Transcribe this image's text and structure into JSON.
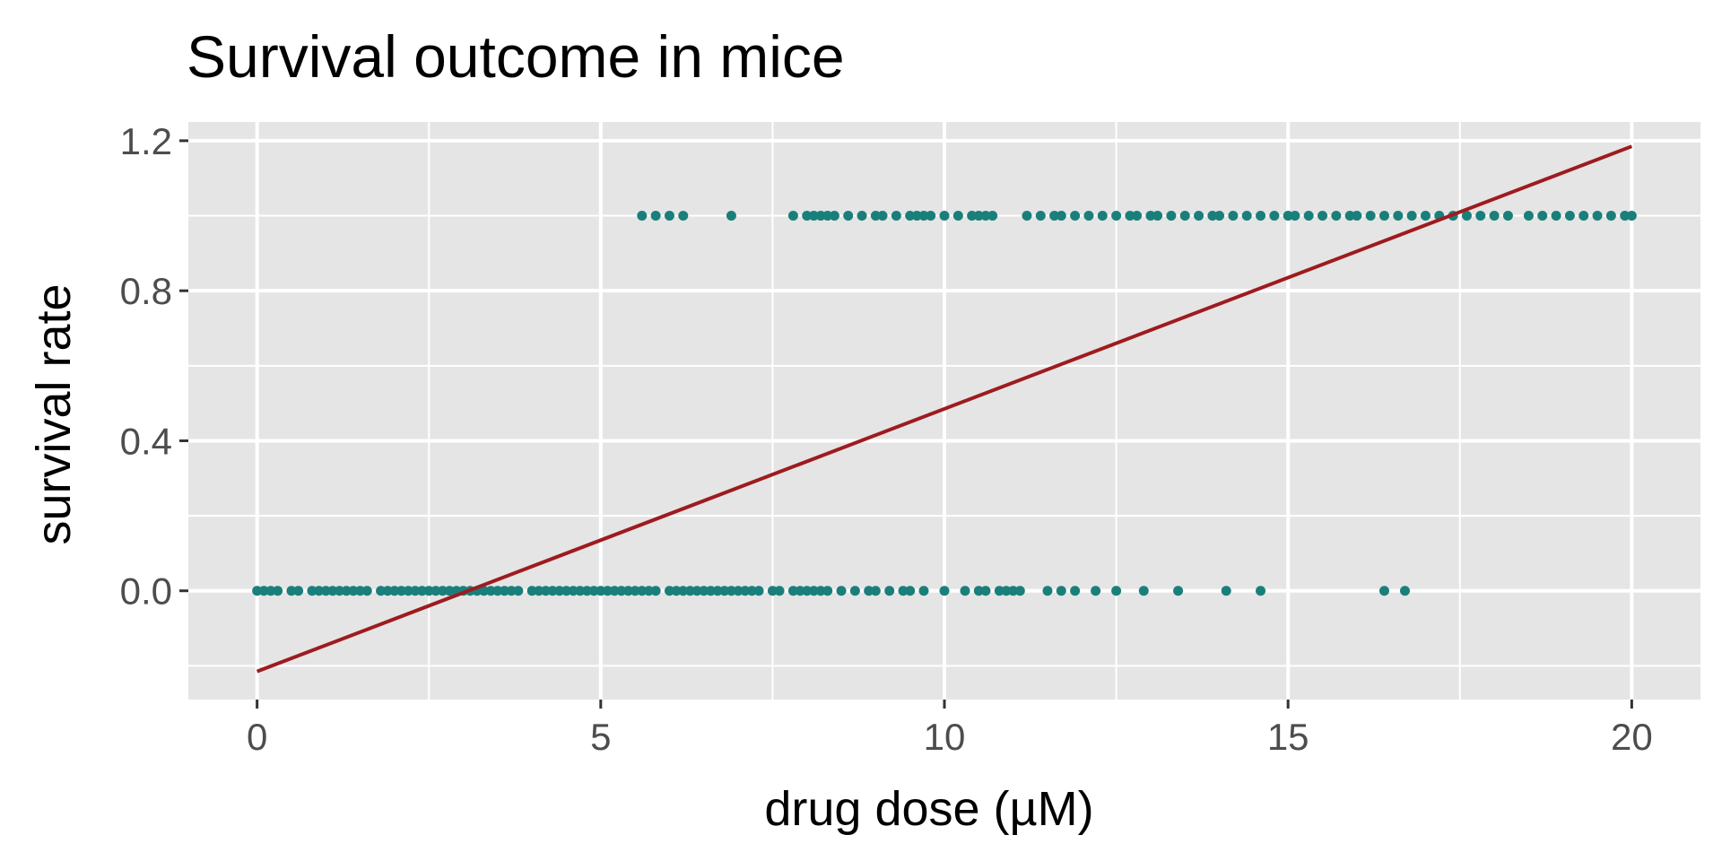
{
  "chart_data": {
    "type": "scatter",
    "title": "Survival outcome in mice",
    "xlabel": "drug dose (µM)",
    "ylabel": "survival rate",
    "xlim": [
      -1,
      21
    ],
    "ylim": [
      -0.29,
      1.25
    ],
    "xticks": [
      0,
      5,
      10,
      15,
      20
    ],
    "yticks": [
      0.0,
      0.4,
      0.8,
      1.2
    ],
    "xtick_labels": [
      "0",
      "5",
      "10",
      "15",
      "20"
    ],
    "ytick_labels": [
      "0.0",
      "0.4",
      "0.8",
      "1.2"
    ],
    "grid": true,
    "colors": {
      "panel": "#e5e5e5",
      "grid": "#ffffff",
      "points": "#1a7f7a",
      "fit_line": "#9e1b1f",
      "tick_text": "#4d4d4d"
    },
    "series": [
      {
        "kind": "points",
        "x": [
          0.0,
          0.1,
          0.2,
          0.3,
          0.5,
          0.6,
          0.8,
          0.9,
          1.0,
          1.1,
          1.2,
          1.3,
          1.4,
          1.5,
          1.6,
          1.8,
          1.9,
          2.0,
          2.1,
          2.2,
          2.3,
          2.4,
          2.5,
          2.6,
          2.7,
          2.8,
          2.9,
          3.0,
          3.1,
          3.2,
          3.3,
          3.4,
          3.5,
          3.6,
          3.7,
          3.8,
          4.0,
          4.1,
          4.2,
          4.3,
          4.4,
          4.5,
          4.6,
          4.7,
          4.8,
          4.9,
          5.0,
          5.1,
          5.2,
          5.3,
          5.4,
          5.5,
          5.6,
          5.7,
          5.8,
          6.0,
          6.1,
          6.2,
          6.3,
          6.4,
          6.5,
          6.6,
          6.7,
          6.8,
          6.9,
          7.0,
          7.1,
          7.2,
          7.3,
          7.5,
          7.6,
          7.8,
          7.9,
          8.0,
          8.1,
          8.2,
          8.3,
          8.5,
          8.7,
          8.9,
          9.0,
          9.2,
          9.4,
          9.5,
          9.7,
          10.0,
          10.3,
          10.5,
          10.6,
          10.8,
          10.9,
          11.0,
          11.1,
          11.5,
          11.7,
          11.9,
          12.2,
          12.5,
          12.9,
          13.4,
          14.1,
          14.6,
          16.4,
          16.7
        ],
        "y": [
          0,
          0,
          0,
          0,
          0,
          0,
          0,
          0,
          0,
          0,
          0,
          0,
          0,
          0,
          0,
          0,
          0,
          0,
          0,
          0,
          0,
          0,
          0,
          0,
          0,
          0,
          0,
          0,
          0,
          0,
          0,
          0,
          0,
          0,
          0,
          0,
          0,
          0,
          0,
          0,
          0,
          0,
          0,
          0,
          0,
          0,
          0,
          0,
          0,
          0,
          0,
          0,
          0,
          0,
          0,
          0,
          0,
          0,
          0,
          0,
          0,
          0,
          0,
          0,
          0,
          0,
          0,
          0,
          0,
          0,
          0,
          0,
          0,
          0,
          0,
          0,
          0,
          0,
          0,
          0,
          0,
          0,
          0,
          0,
          0,
          0,
          0,
          0,
          0,
          0,
          0,
          0,
          0,
          0,
          0,
          0,
          0,
          0,
          0,
          0,
          0,
          0,
          0,
          0
        ]
      },
      {
        "kind": "points",
        "x": [
          5.6,
          5.8,
          6.0,
          6.2,
          6.9,
          7.8,
          8.0,
          8.1,
          8.2,
          8.3,
          8.4,
          8.6,
          8.8,
          9.0,
          9.1,
          9.3,
          9.5,
          9.6,
          9.7,
          9.8,
          10.0,
          10.2,
          10.4,
          10.5,
          10.6,
          10.7,
          11.2,
          11.4,
          11.6,
          11.7,
          11.9,
          12.1,
          12.3,
          12.5,
          12.7,
          12.8,
          13.0,
          13.1,
          13.3,
          13.5,
          13.7,
          13.9,
          14.0,
          14.2,
          14.4,
          14.6,
          14.8,
          15.0,
          15.1,
          15.3,
          15.5,
          15.7,
          15.9,
          16.0,
          16.2,
          16.4,
          16.6,
          16.8,
          17.0,
          17.2,
          17.4,
          17.6,
          17.8,
          18.0,
          18.2,
          18.5,
          18.7,
          18.9,
          19.1,
          19.3,
          19.5,
          19.7,
          19.9,
          20.0
        ],
        "y": [
          1,
          1,
          1,
          1,
          1,
          1,
          1,
          1,
          1,
          1,
          1,
          1,
          1,
          1,
          1,
          1,
          1,
          1,
          1,
          1,
          1,
          1,
          1,
          1,
          1,
          1,
          1,
          1,
          1,
          1,
          1,
          1,
          1,
          1,
          1,
          1,
          1,
          1,
          1,
          1,
          1,
          1,
          1,
          1,
          1,
          1,
          1,
          1,
          1,
          1,
          1,
          1,
          1,
          1,
          1,
          1,
          1,
          1,
          1,
          1,
          1,
          1,
          1,
          1,
          1,
          1,
          1,
          1,
          1,
          1,
          1,
          1,
          1,
          1
        ]
      },
      {
        "kind": "line",
        "x": [
          0,
          20
        ],
        "y": [
          -0.215,
          1.185
        ]
      }
    ]
  }
}
